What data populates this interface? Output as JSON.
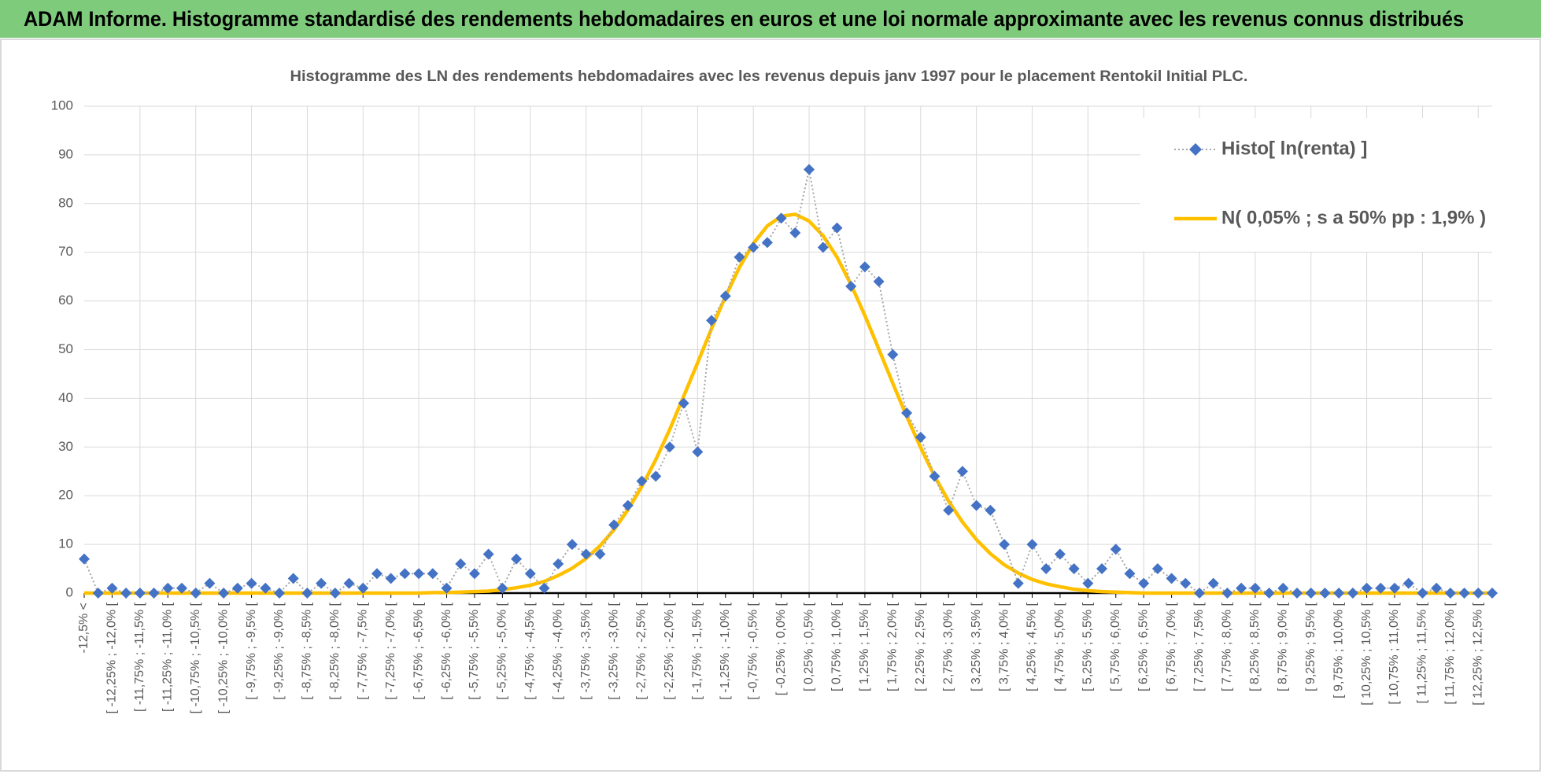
{
  "chart_data": {
    "type": "line",
    "header": "ADAM Informe. Histogramme standardisé des rendements hebdomadaires en euros et une loi normale approximante avec les revenus connus distribués",
    "title": "Histogramme des LN des rendements hebdomadaires avec les revenus depuis janv 1997 pour le placement Rentokil Initial PLC.",
    "categories": [
      "-12,5% <",
      null,
      "[ -12,25% ; -12,0% [",
      null,
      "[ -11,75% ; -11,5% [",
      null,
      "[ -11,25% ; -11,0% [",
      null,
      "[ -10,75% ; -10,5% [",
      null,
      "[ -10,25% ; -10,0% [",
      null,
      "[ -9,75% ; -9,5% [",
      null,
      "[ -9,25% ; -9,0% [",
      null,
      "[ -8,75% ; -8,5% [",
      null,
      "[ -8,25% ; -8,0% [",
      null,
      "[ -7,75% ; -7,5% [",
      null,
      "[ -7,25% ; -7,0% [",
      null,
      "[ -6,75% ; -6,5% [",
      null,
      "[ -6,25% ; -6,0% [",
      null,
      "[ -5,75% ; -5,5% [",
      null,
      "[ -5,25% ; -5,0% [",
      null,
      "[ -4,75% ; -4,5% [",
      null,
      "[ -4,25% ; -4,0% [",
      null,
      "[ -3,75% ; -3,5% [",
      null,
      "[ -3,25% ; -3,0% [",
      null,
      "[ -2,75% ; -2,5% [",
      null,
      "[ -2,25% ; -2,0% [",
      null,
      "[ -1,75% ; -1,5% [",
      null,
      "[ -1,25% ; -1,0% [",
      null,
      "[ -0,75% ; -0,5% [",
      null,
      "[ -0,25% ; 0,0% [",
      null,
      "[ 0,25% ; 0,5% [",
      null,
      "[ 0,75% ; 1,0% [",
      null,
      "[ 1,25% ; 1,5% [",
      null,
      "[ 1,75% ; 2,0% [",
      null,
      "[ 2,25% ; 2,5% [",
      null,
      "[ 2,75% ; 3,0% [",
      null,
      "[ 3,25% ; 3,5% [",
      null,
      "[ 3,75% ; 4,0% [",
      null,
      "[ 4,25% ; 4,5% [",
      null,
      "[ 4,75% ; 5,0% [",
      null,
      "[ 5,25% ; 5,5% [",
      null,
      "[ 5,75% ; 6,0% [",
      null,
      "[ 6,25% ; 6,5% [",
      null,
      "[ 6,75% ; 7,0% [",
      null,
      "[ 7,25% ; 7,5% [",
      null,
      "[ 7,75% ; 8,0% [",
      null,
      "[ 8,25% ; 8,5% [",
      null,
      "[ 8,75% ; 9,0% [",
      null,
      "[ 9,25% ; 9,5% [",
      null,
      "[ 9,75% ; 10,0% [",
      null,
      "[ 10,25% ; 10,5% [",
      null,
      "[ 10,75% ; 11,0% [",
      null,
      "[ 11,25% ; 11,5% [",
      null,
      "[ 11,75% ; 12,0% [",
      null,
      "[ 12,25% ; 12,5% [",
      null
    ],
    "series": [
      {
        "name": "Histo[ ln(renta) ]",
        "color": "#4472c4",
        "values": [
          7,
          0,
          1,
          0,
          0,
          0,
          1,
          1,
          0,
          2,
          0,
          1,
          2,
          1,
          0,
          3,
          0,
          2,
          0,
          2,
          1,
          4,
          3,
          4,
          4,
          4,
          1,
          6,
          4,
          8,
          1,
          7,
          4,
          1,
          6,
          10,
          8,
          8,
          14,
          18,
          23,
          24,
          30,
          39,
          29,
          56,
          61,
          69,
          71,
          72,
          77,
          74,
          87,
          71,
          75,
          63,
          67,
          64,
          49,
          37,
          32,
          24,
          17,
          25,
          18,
          17,
          10,
          2,
          10,
          5,
          8,
          5,
          2,
          5,
          9,
          4,
          2,
          5,
          3,
          2,
          0,
          2,
          0,
          1,
          1,
          0,
          1,
          0,
          0,
          0,
          0,
          0,
          1,
          1,
          1,
          2,
          0,
          1,
          0,
          0,
          0,
          0
        ]
      },
      {
        "name": "N( 0,05% ; s a 50% pp : 1,9% )",
        "color": "#ffc000",
        "values": [
          0,
          0,
          0,
          0,
          0,
          0,
          0,
          0,
          0,
          0,
          0,
          0,
          0,
          0,
          0,
          0,
          0,
          0,
          0,
          0,
          0,
          0,
          0,
          0,
          0,
          0.1,
          0.1,
          0.2,
          0.3,
          0.4,
          0.7,
          1.1,
          1.6,
          2.4,
          3.6,
          5.1,
          7.1,
          9.7,
          13,
          17.1,
          21.9,
          27.4,
          33.6,
          40.4,
          47.3,
          54.3,
          60.9,
          66.9,
          71.8,
          75.4,
          77.4,
          77.8,
          76.4,
          73.4,
          69,
          63.4,
          57,
          50.1,
          43.1,
          36.3,
          29.9,
          24,
          18.9,
          14.6,
          11,
          8.1,
          5.8,
          4.1,
          2.8,
          1.9,
          1.3,
          0.8,
          0.5,
          0.3,
          0.2,
          0.1,
          0,
          0,
          0,
          0,
          0,
          0,
          0,
          0,
          0,
          0,
          0,
          0,
          0,
          0,
          0,
          0,
          0,
          0,
          0,
          0,
          0,
          0,
          0,
          0,
          0,
          0
        ]
      }
    ],
    "ylim": [
      0,
      100
    ],
    "yticks": [
      0,
      10,
      20,
      30,
      40,
      50,
      60,
      70,
      80,
      90,
      100
    ],
    "grid": true,
    "legend": "upper right"
  }
}
